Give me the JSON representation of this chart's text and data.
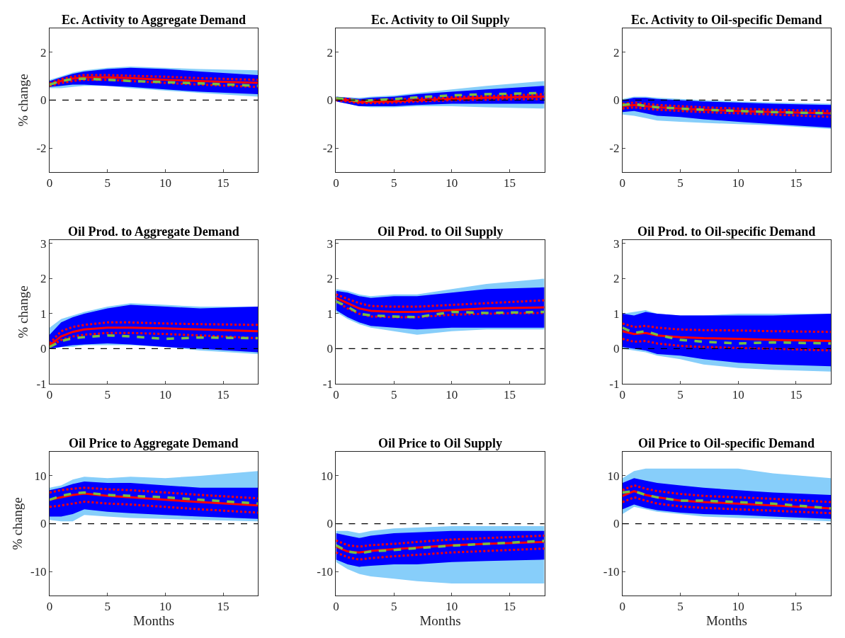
{
  "chart_data": [
    {
      "type": "line",
      "title": "Ec. Activity to Aggregate Demand",
      "ylabel": "% change",
      "x": [
        0,
        1,
        2,
        3,
        5,
        7,
        10,
        13,
        18
      ],
      "xlim": [
        0,
        18
      ],
      "xticks": [
        0,
        5,
        10,
        15
      ],
      "ylim": [
        -3,
        3
      ],
      "yticks": [
        -2,
        0,
        2
      ],
      "ref_lines": [
        {
          "axis": "y",
          "value": 0,
          "color": "#000000",
          "line_style": "dashed"
        }
      ],
      "series": [
        {
          "color": "#87cefa",
          "values": [
            null,
            null,
            null,
            null,
            null,
            null,
            null,
            null,
            null
          ],
          "lower": [
            0.5,
            0.5,
            0.55,
            0.6,
            0.6,
            0.5,
            0.4,
            0.3,
            0.15
          ],
          "upper": [
            0.85,
            1.0,
            1.15,
            1.25,
            1.35,
            1.4,
            1.35,
            1.3,
            1.25
          ]
        },
        {
          "color": "#0000ff",
          "values": [
            null,
            null,
            null,
            null,
            null,
            null,
            null,
            null,
            null
          ],
          "lower": [
            0.55,
            0.6,
            0.65,
            0.65,
            0.6,
            0.55,
            0.45,
            0.35,
            0.25
          ],
          "upper": [
            0.8,
            0.95,
            1.1,
            1.2,
            1.3,
            1.35,
            1.3,
            1.2,
            1.05
          ]
        },
        {
          "color": "#ff0000",
          "line_style": "solid",
          "values": [
            0.65,
            0.8,
            0.9,
            0.95,
            0.95,
            0.92,
            0.85,
            0.8,
            0.72
          ]
        },
        {
          "color": "#ff0000",
          "line_style": "dotted",
          "values": [
            0.6,
            0.72,
            0.8,
            0.85,
            0.85,
            0.8,
            0.72,
            0.65,
            0.55
          ]
        },
        {
          "color": "#ff0000",
          "line_style": "dotted",
          "values": [
            0.7,
            0.88,
            0.98,
            1.05,
            1.05,
            1.02,
            0.98,
            0.92,
            0.85
          ]
        },
        {
          "color": "#77c043",
          "line_style": "dashed",
          "values": [
            0.65,
            0.8,
            0.88,
            0.9,
            0.85,
            0.8,
            0.75,
            0.7,
            0.6
          ]
        }
      ]
    },
    {
      "type": "line",
      "title": "Ec. Activity to Oil Supply",
      "x": [
        0,
        1,
        2,
        3,
        5,
        7,
        10,
        13,
        18
      ],
      "xlim": [
        0,
        18
      ],
      "xticks": [
        0,
        5,
        10,
        15
      ],
      "ylim": [
        -3,
        3
      ],
      "yticks": [
        -2,
        0,
        2
      ],
      "ref_lines": [
        {
          "axis": "y",
          "value": 0,
          "color": "#000000",
          "line_style": "dashed"
        }
      ],
      "series": [
        {
          "color": "#87cefa",
          "values": [
            null,
            null,
            null,
            null,
            null,
            null,
            null,
            null,
            null
          ],
          "lower": [
            -0.05,
            -0.15,
            -0.25,
            -0.3,
            -0.3,
            -0.25,
            -0.25,
            -0.3,
            -0.35
          ],
          "upper": [
            0.15,
            0.12,
            0.1,
            0.15,
            0.2,
            0.3,
            0.45,
            0.6,
            0.8
          ]
        },
        {
          "color": "#0000ff",
          "values": [
            null,
            null,
            null,
            null,
            null,
            null,
            null,
            null,
            null
          ],
          "lower": [
            -0.05,
            -0.15,
            -0.25,
            -0.25,
            -0.25,
            -0.2,
            -0.15,
            -0.15,
            -0.15
          ],
          "upper": [
            0.15,
            0.1,
            0.05,
            0.1,
            0.15,
            0.25,
            0.35,
            0.45,
            0.6
          ]
        },
        {
          "color": "#ff0000",
          "line_style": "solid",
          "values": [
            0.05,
            0,
            -0.08,
            -0.07,
            -0.05,
            0,
            0.05,
            0.1,
            0.15
          ]
        },
        {
          "color": "#ff0000",
          "line_style": "dotted",
          "values": [
            0,
            -0.05,
            -0.12,
            -0.12,
            -0.1,
            -0.05,
            0,
            0.02,
            0.05
          ]
        },
        {
          "color": "#ff0000",
          "line_style": "dotted",
          "values": [
            0.08,
            0.05,
            -0.02,
            0,
            0.02,
            0.07,
            0.12,
            0.17,
            0.25
          ]
        },
        {
          "color": "#77c043",
          "line_style": "dashed",
          "values": [
            0.08,
            0.05,
            -0.05,
            0,
            0.05,
            0.12,
            0.2,
            0.25,
            0.3
          ]
        }
      ]
    },
    {
      "type": "line",
      "title": "Ec. Activity to Oil-specific Demand",
      "x": [
        0,
        1,
        2,
        3,
        5,
        7,
        10,
        13,
        18
      ],
      "xlim": [
        0,
        18
      ],
      "xticks": [
        0,
        5,
        10,
        15
      ],
      "ylim": [
        -3,
        3
      ],
      "yticks": [
        -2,
        0,
        2
      ],
      "ref_lines": [
        {
          "axis": "y",
          "value": 0,
          "color": "#000000",
          "line_style": "dashed"
        }
      ],
      "series": [
        {
          "color": "#87cefa",
          "values": [
            null,
            null,
            null,
            null,
            null,
            null,
            null,
            null,
            null
          ],
          "lower": [
            -0.6,
            -0.65,
            -0.75,
            -0.85,
            -0.9,
            -0.95,
            -1.0,
            -1.05,
            -1.2
          ],
          "upper": [
            0.05,
            0.15,
            0.15,
            0.1,
            0.05,
            0,
            -0.05,
            -0.1,
            -0.15
          ]
        },
        {
          "color": "#0000ff",
          "values": [
            null,
            null,
            null,
            null,
            null,
            null,
            null,
            null,
            null
          ],
          "lower": [
            -0.5,
            -0.45,
            -0.55,
            -0.65,
            -0.7,
            -0.8,
            -0.9,
            -1.0,
            -1.15
          ],
          "upper": [
            0,
            0.1,
            0.1,
            0.05,
            0,
            -0.05,
            -0.1,
            -0.15,
            -0.2
          ]
        },
        {
          "color": "#ff0000",
          "line_style": "solid",
          "values": [
            -0.25,
            -0.2,
            -0.25,
            -0.3,
            -0.35,
            -0.4,
            -0.45,
            -0.5,
            -0.55
          ]
        },
        {
          "color": "#ff0000",
          "line_style": "dotted",
          "values": [
            -0.35,
            -0.3,
            -0.35,
            -0.4,
            -0.45,
            -0.5,
            -0.55,
            -0.6,
            -0.7
          ]
        },
        {
          "color": "#ff0000",
          "line_style": "dotted",
          "values": [
            -0.15,
            -0.1,
            -0.15,
            -0.2,
            -0.25,
            -0.3,
            -0.35,
            -0.4,
            -0.45
          ]
        },
        {
          "color": "#77c043",
          "line_style": "dashed",
          "values": [
            -0.2,
            -0.15,
            -0.25,
            -0.3,
            -0.35,
            -0.4,
            -0.45,
            -0.5,
            -0.55
          ]
        }
      ]
    },
    {
      "type": "line",
      "title": "Oil Prod. to Aggregate Demand",
      "ylabel": "% change",
      "x": [
        0,
        1,
        2,
        3,
        5,
        7,
        10,
        13,
        18
      ],
      "xlim": [
        0,
        18
      ],
      "xticks": [
        0,
        5,
        10,
        15
      ],
      "ylim": [
        -1,
        3.1
      ],
      "yticks": [
        -1,
        0,
        1,
        2,
        3
      ],
      "ref_lines": [
        {
          "axis": "y",
          "value": 0,
          "color": "#000000",
          "line_style": "dashed"
        }
      ],
      "series": [
        {
          "color": "#87cefa",
          "values": [
            null,
            null,
            null,
            null,
            null,
            null,
            null,
            null,
            null
          ],
          "lower": [
            0,
            0.05,
            0.05,
            0.1,
            0.1,
            0.1,
            0.05,
            -0.05,
            -0.15
          ],
          "upper": [
            0.6,
            0.85,
            0.95,
            1.05,
            1.2,
            1.3,
            1.25,
            1.2,
            1.2
          ]
        },
        {
          "color": "#0000ff",
          "values": [
            null,
            null,
            null,
            null,
            null,
            null,
            null,
            null,
            null
          ],
          "lower": [
            0,
            0.05,
            0.1,
            0.12,
            0.15,
            0.12,
            0.05,
            0,
            -0.1
          ],
          "upper": [
            0.4,
            0.75,
            0.9,
            1.0,
            1.15,
            1.25,
            1.2,
            1.15,
            1.2
          ]
        },
        {
          "color": "#ff0000",
          "line_style": "solid",
          "values": [
            0.1,
            0.35,
            0.48,
            0.55,
            0.6,
            0.6,
            0.58,
            0.55,
            0.5
          ]
        },
        {
          "color": "#ff0000",
          "line_style": "dotted",
          "values": [
            0.05,
            0.25,
            0.35,
            0.4,
            0.45,
            0.45,
            0.42,
            0.38,
            0.3
          ]
        },
        {
          "color": "#ff0000",
          "line_style": "dotted",
          "values": [
            0.15,
            0.5,
            0.62,
            0.68,
            0.75,
            0.75,
            0.72,
            0.7,
            0.68
          ]
        },
        {
          "color": "#77c043",
          "line_style": "dashed",
          "values": [
            0.05,
            0.22,
            0.3,
            0.33,
            0.38,
            0.35,
            0.28,
            0.32,
            0.3
          ]
        }
      ]
    },
    {
      "type": "line",
      "title": "Oil Prod. to Oil Supply",
      "x": [
        0,
        1,
        2,
        3,
        5,
        7,
        10,
        13,
        18
      ],
      "xlim": [
        0,
        18
      ],
      "xticks": [
        0,
        5,
        10,
        15
      ],
      "ylim": [
        -1,
        3.1
      ],
      "yticks": [
        -1,
        0,
        1,
        2,
        3
      ],
      "ref_lines": [
        {
          "axis": "y",
          "value": 0,
          "color": "#000000",
          "line_style": "dashed"
        }
      ],
      "series": [
        {
          "color": "#87cefa",
          "values": [
            null,
            null,
            null,
            null,
            null,
            null,
            null,
            null,
            null
          ],
          "lower": [
            1.05,
            0.85,
            0.7,
            0.6,
            0.5,
            0.4,
            0.5,
            0.55,
            0.55
          ],
          "upper": [
            1.7,
            1.65,
            1.55,
            1.5,
            1.55,
            1.55,
            1.7,
            1.85,
            2.0
          ]
        },
        {
          "color": "#0000ff",
          "values": [
            null,
            null,
            null,
            null,
            null,
            null,
            null,
            null,
            null
          ],
          "lower": [
            1.1,
            0.9,
            0.75,
            0.65,
            0.6,
            0.55,
            0.6,
            0.6,
            0.6
          ],
          "upper": [
            1.65,
            1.6,
            1.5,
            1.45,
            1.5,
            1.5,
            1.6,
            1.7,
            1.75
          ]
        },
        {
          "color": "#ff0000",
          "line_style": "solid",
          "values": [
            1.45,
            1.3,
            1.15,
            1.08,
            1.05,
            1.05,
            1.1,
            1.15,
            1.18
          ]
        },
        {
          "color": "#ff0000",
          "line_style": "dotted",
          "values": [
            1.35,
            1.15,
            1.0,
            0.92,
            0.9,
            0.9,
            0.97,
            1.0,
            1.02
          ]
        },
        {
          "color": "#ff0000",
          "line_style": "dotted",
          "values": [
            1.55,
            1.42,
            1.3,
            1.22,
            1.2,
            1.2,
            1.25,
            1.3,
            1.38
          ]
        },
        {
          "color": "#77c043",
          "line_style": "dashed",
          "values": [
            1.35,
            1.2,
            1.0,
            0.95,
            0.92,
            0.9,
            1.05,
            1.02,
            1.05
          ]
        }
      ]
    },
    {
      "type": "line",
      "title": "Oil Prod. to Oil-specific Demand",
      "x": [
        0,
        1,
        2,
        3,
        5,
        7,
        10,
        13,
        18
      ],
      "xlim": [
        0,
        18
      ],
      "xticks": [
        0,
        5,
        10,
        15
      ],
      "ylim": [
        -1,
        3.1
      ],
      "yticks": [
        -1,
        0,
        1,
        2,
        3
      ],
      "ref_lines": [
        {
          "axis": "y",
          "value": 0,
          "color": "#000000",
          "line_style": "dashed"
        }
      ],
      "series": [
        {
          "color": "#87cefa",
          "values": [
            null,
            null,
            null,
            null,
            null,
            null,
            null,
            null,
            null
          ],
          "lower": [
            0,
            -0.05,
            -0.1,
            -0.2,
            -0.3,
            -0.45,
            -0.55,
            -0.6,
            -0.65
          ],
          "upper": [
            1.0,
            1.05,
            1.1,
            1.0,
            0.95,
            0.95,
            1.0,
            1.0,
            1.0
          ]
        },
        {
          "color": "#0000ff",
          "values": [
            null,
            null,
            null,
            null,
            null,
            null,
            null,
            null,
            null
          ],
          "lower": [
            0.05,
            0,
            -0.05,
            -0.15,
            -0.2,
            -0.3,
            -0.4,
            -0.45,
            -0.5
          ],
          "upper": [
            1.0,
            0.95,
            1.05,
            1.0,
            0.95,
            0.95,
            0.95,
            0.95,
            1.0
          ]
        },
        {
          "color": "#ff0000",
          "line_style": "solid",
          "values": [
            0.5,
            0.42,
            0.45,
            0.38,
            0.33,
            0.3,
            0.28,
            0.25,
            0.22
          ]
        },
        {
          "color": "#ff0000",
          "line_style": "dotted",
          "values": [
            0.28,
            0.2,
            0.22,
            0.15,
            0.08,
            0.05,
            0.02,
            0,
            -0.05
          ]
        },
        {
          "color": "#ff0000",
          "line_style": "dotted",
          "values": [
            0.72,
            0.62,
            0.65,
            0.6,
            0.55,
            0.53,
            0.52,
            0.5,
            0.48
          ]
        },
        {
          "color": "#77c043",
          "line_style": "dashed",
          "values": [
            0.6,
            0.45,
            0.5,
            0.4,
            0.25,
            0.2,
            0.15,
            0.18,
            0.15
          ]
        }
      ]
    },
    {
      "type": "line",
      "title": "Oil Price to Aggregate Demand",
      "ylabel": "% change",
      "xlabel": "Months",
      "x": [
        0,
        1,
        2,
        3,
        5,
        7,
        10,
        13,
        18
      ],
      "xlim": [
        0,
        18
      ],
      "xticks": [
        0,
        5,
        10,
        15
      ],
      "ylim": [
        -15,
        15
      ],
      "yticks": [
        -10,
        0,
        10
      ],
      "ref_lines": [
        {
          "axis": "y",
          "value": 0,
          "color": "#000000",
          "line_style": "dashed"
        }
      ],
      "series": [
        {
          "color": "#87cefa",
          "values": [
            null,
            null,
            null,
            null,
            null,
            null,
            null,
            null,
            null
          ],
          "lower": [
            0.8,
            0.5,
            0.5,
            1.8,
            1.5,
            1.2,
            1,
            0.8,
            0.5
          ],
          "upper": [
            7.5,
            8,
            9.2,
            9.8,
            9.5,
            9.8,
            9.5,
            10,
            11
          ]
        },
        {
          "color": "#0000ff",
          "values": [
            null,
            null,
            null,
            null,
            null,
            null,
            null,
            null,
            null
          ],
          "lower": [
            1.5,
            1.5,
            2,
            3,
            2.5,
            2.2,
            1.8,
            1.5,
            1
          ],
          "upper": [
            7,
            7.5,
            8.3,
            8.8,
            8.5,
            8.5,
            8,
            7.5,
            7.5
          ]
        },
        {
          "color": "#ff0000",
          "line_style": "solid",
          "values": [
            5,
            5.5,
            6,
            6.3,
            5.8,
            5.5,
            5,
            4.5,
            3.8
          ]
        },
        {
          "color": "#ff0000",
          "line_style": "dotted",
          "values": [
            3.5,
            3.8,
            4.2,
            4.6,
            4.2,
            4,
            3.5,
            3,
            2.3
          ]
        },
        {
          "color": "#ff0000",
          "line_style": "dotted",
          "values": [
            6.5,
            7,
            7.3,
            7.5,
            7.2,
            7,
            6.5,
            6,
            5.3
          ]
        },
        {
          "color": "#77c043",
          "line_style": "dashed",
          "values": [
            5,
            5.8,
            6.3,
            6.5,
            6,
            5.8,
            5.5,
            5,
            4.2
          ]
        }
      ]
    },
    {
      "type": "line",
      "title": "Oil Price to Oil Supply",
      "xlabel": "Months",
      "x": [
        0,
        1,
        2,
        3,
        5,
        7,
        10,
        13,
        18
      ],
      "xlim": [
        0,
        18
      ],
      "xticks": [
        0,
        5,
        10,
        15
      ],
      "ylim": [
        -15,
        15
      ],
      "yticks": [
        -10,
        0,
        10
      ],
      "ref_lines": [
        {
          "axis": "y",
          "value": 0,
          "color": "#000000",
          "line_style": "dashed"
        }
      ],
      "series": [
        {
          "color": "#87cefa",
          "values": [
            null,
            null,
            null,
            null,
            null,
            null,
            null,
            null,
            null
          ],
          "lower": [
            -8,
            -9.5,
            -10.5,
            -11,
            -11.5,
            -12,
            -12.5,
            -12.5,
            -12.5
          ],
          "upper": [
            -1.5,
            -1.5,
            -2,
            -1.5,
            -1,
            -0.8,
            -0.5,
            -0.5,
            -0.5
          ]
        },
        {
          "color": "#0000ff",
          "values": [
            null,
            null,
            null,
            null,
            null,
            null,
            null,
            null,
            null
          ],
          "lower": [
            -7.5,
            -8.5,
            -9,
            -8.8,
            -8.5,
            -8.5,
            -8,
            -7.8,
            -7.5
          ],
          "upper": [
            -2,
            -2.5,
            -3,
            -2.5,
            -2,
            -1.8,
            -1.5,
            -1.5,
            -1.5
          ]
        },
        {
          "color": "#ff0000",
          "line_style": "solid",
          "values": [
            -4.8,
            -5.8,
            -6,
            -5.7,
            -5.3,
            -5,
            -4.5,
            -4.2,
            -3.8
          ]
        },
        {
          "color": "#ff0000",
          "line_style": "dotted",
          "values": [
            -6,
            -7,
            -7.5,
            -7.2,
            -6.8,
            -6.5,
            -6,
            -5.7,
            -5.2
          ]
        },
        {
          "color": "#ff0000",
          "line_style": "dotted",
          "values": [
            -3.5,
            -4.5,
            -4.8,
            -4.5,
            -4.2,
            -3.8,
            -3.3,
            -3,
            -2.5
          ]
        },
        {
          "color": "#77c043",
          "line_style": "dashed",
          "values": [
            -4.5,
            -5.8,
            -6.2,
            -5.8,
            -5.5,
            -5.1,
            -4.6,
            -4.2,
            -3.6
          ]
        }
      ]
    },
    {
      "type": "line",
      "title": "Oil Price to Oil-specific Demand",
      "xlabel": "Months",
      "x": [
        0,
        1,
        2,
        3,
        5,
        7,
        10,
        13,
        18
      ],
      "xlim": [
        0,
        18
      ],
      "xticks": [
        0,
        5,
        10,
        15
      ],
      "ylim": [
        -15,
        15
      ],
      "yticks": [
        -10,
        0,
        10
      ],
      "ref_lines": [
        {
          "axis": "y",
          "value": 0,
          "color": "#000000",
          "line_style": "dashed"
        }
      ],
      "series": [
        {
          "color": "#87cefa",
          "values": [
            null,
            null,
            null,
            null,
            null,
            null,
            null,
            null,
            null
          ],
          "lower": [
            2,
            3.5,
            3,
            2.5,
            2,
            1.5,
            1.2,
            1,
            0.5
          ],
          "upper": [
            9.5,
            11,
            11.5,
            11.5,
            11.5,
            11.5,
            11.5,
            10.5,
            9.5
          ]
        },
        {
          "color": "#0000ff",
          "values": [
            null,
            null,
            null,
            null,
            null,
            null,
            null,
            null,
            null
          ],
          "lower": [
            3,
            4,
            3.3,
            2.8,
            2.3,
            2,
            1.8,
            1.5,
            1
          ],
          "upper": [
            8.5,
            9.5,
            9,
            8.5,
            8,
            7.5,
            7,
            6.5,
            6
          ]
        },
        {
          "color": "#ff0000",
          "line_style": "solid",
          "values": [
            5.8,
            6.8,
            6,
            5.5,
            4.8,
            4.5,
            4.2,
            3.8,
            3.2
          ]
        },
        {
          "color": "#ff0000",
          "line_style": "dotted",
          "values": [
            4.5,
            5.5,
            4.8,
            4.2,
            3.6,
            3.3,
            3,
            2.7,
            2.2
          ]
        },
        {
          "color": "#ff0000",
          "line_style": "dotted",
          "values": [
            7,
            8,
            7.3,
            6.8,
            6.2,
            5.8,
            5.5,
            5.2,
            4.5
          ]
        },
        {
          "color": "#77c043",
          "line_style": "dashed",
          "values": [
            6.5,
            6.8,
            6,
            5.5,
            4.8,
            4.8,
            4.5,
            4.2,
            3.2
          ]
        }
      ]
    }
  ]
}
